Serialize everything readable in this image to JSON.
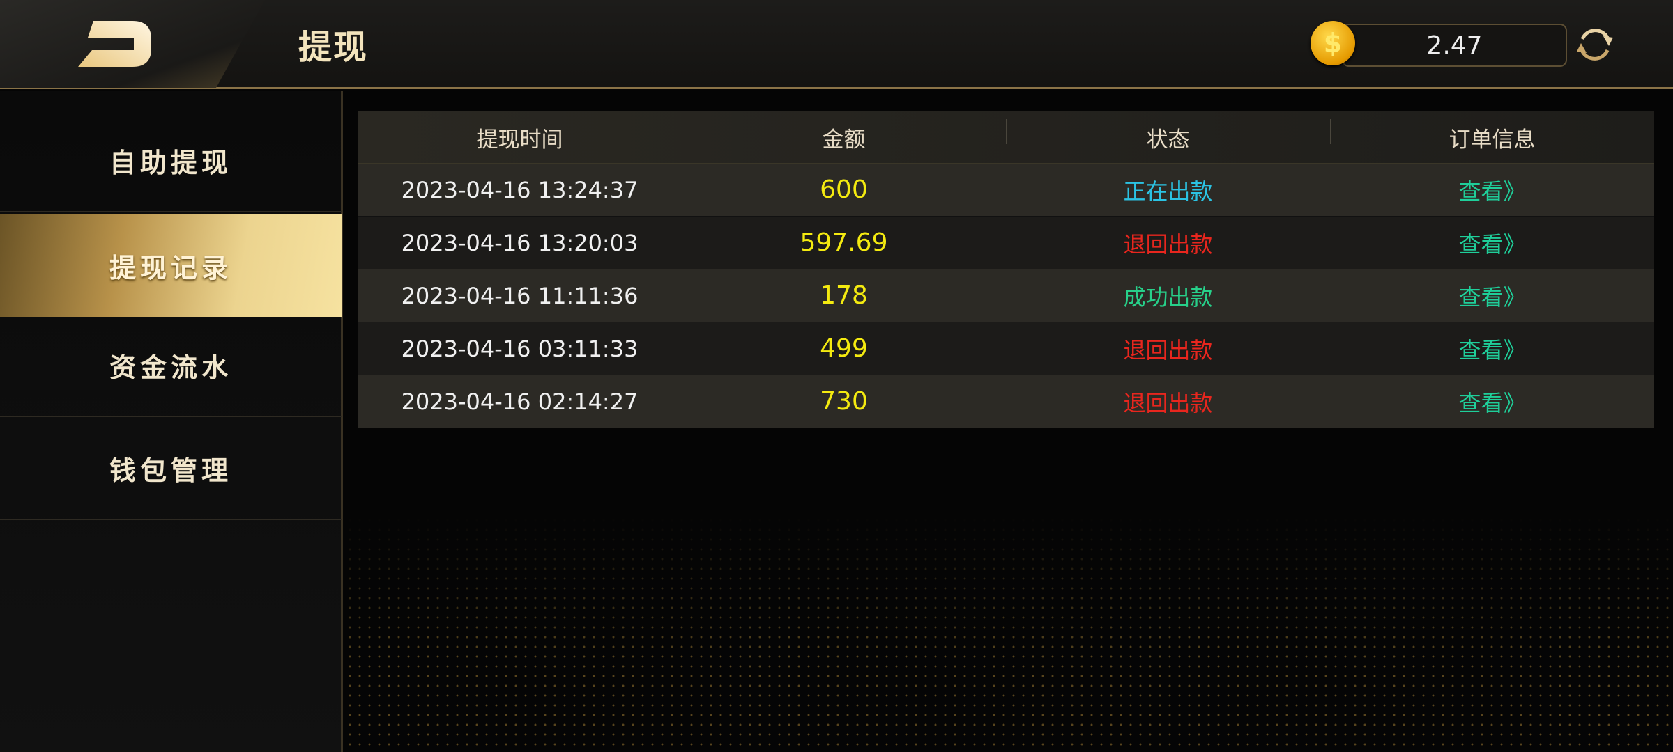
{
  "header": {
    "title": "提现",
    "balance": "2.47",
    "coin_icon": "dollar-coin-icon",
    "coin_symbol": "$"
  },
  "sidebar": {
    "items": [
      {
        "label": "自助提现",
        "active": false
      },
      {
        "label": "提现记录",
        "active": true
      },
      {
        "label": "资金流水",
        "active": false
      },
      {
        "label": "钱包管理",
        "active": false
      }
    ]
  },
  "table": {
    "headers": [
      "提现时间",
      "金额",
      "状态",
      "订单信息"
    ],
    "rows": [
      {
        "time": "2023-04-16 13:24:37",
        "amount": "600",
        "status": "正在出款",
        "status_color": "#2bc3e3",
        "action": "查看》"
      },
      {
        "time": "2023-04-16 13:20:03",
        "amount": "597.69",
        "status": "退回出款",
        "status_color": "#e8261e",
        "action": "查看》"
      },
      {
        "time": "2023-04-16 11:11:36",
        "amount": "178",
        "status": "成功出款",
        "status_color": "#27d08a",
        "action": "查看》"
      },
      {
        "time": "2023-04-16 03:11:33",
        "amount": "499",
        "status": "退回出款",
        "status_color": "#e8261e",
        "action": "查看》"
      },
      {
        "time": "2023-04-16 02:14:27",
        "amount": "730",
        "status": "退回出款",
        "status_color": "#e8261e",
        "action": "查看》"
      }
    ]
  }
}
